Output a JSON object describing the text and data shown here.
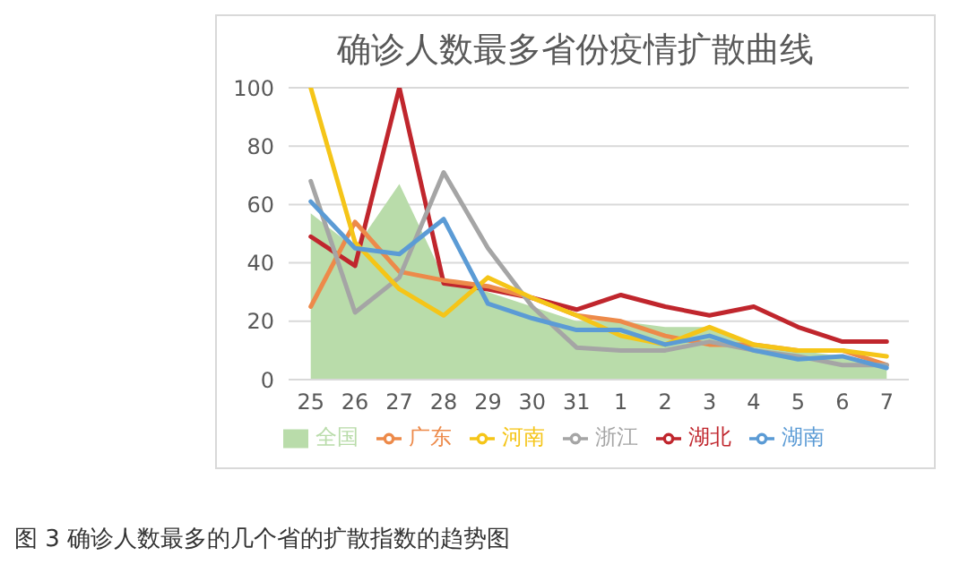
{
  "chart_data": {
    "type": "line",
    "title": "确诊人数最多省份疫情扩散曲线",
    "annotations": [
      "图 3 确诊人数最多的几个省的扩散指数的趋势图"
    ],
    "categories": [
      "25",
      "26",
      "27",
      "28",
      "29",
      "30",
      "31",
      "1",
      "2",
      "3",
      "4",
      "5",
      "6",
      "7"
    ],
    "ylim": [
      0,
      100
    ],
    "yticks": [
      0,
      20,
      40,
      60,
      80,
      100
    ],
    "grid": "y",
    "legend": "bottom",
    "marker": "none",
    "line_style": "solid",
    "series": [
      {
        "name": "全国",
        "type": "area",
        "color": "#b9dcaa",
        "values": [
          57,
          45,
          67,
          35,
          30,
          25,
          20,
          20,
          18,
          18,
          12,
          10,
          8,
          5
        ]
      },
      {
        "name": "湖北",
        "color": "#c0262d",
        "values": [
          49,
          39,
          100,
          33,
          31,
          28,
          24,
          29,
          25,
          22,
          25,
          18,
          13,
          13
        ]
      },
      {
        "name": "广东",
        "color": "#ed8a4a",
        "values": [
          25,
          54,
          37,
          34,
          32,
          28,
          22,
          20,
          15,
          12,
          12,
          10,
          10,
          5
        ]
      },
      {
        "name": "浙江",
        "color": "#a5a5a5",
        "values": [
          68,
          23,
          35,
          71,
          45,
          25,
          11,
          10,
          10,
          13,
          10,
          8,
          5,
          5
        ]
      },
      {
        "name": "河南",
        "color": "#f5c518",
        "values": [
          100,
          47,
          31,
          22,
          35,
          28,
          22,
          15,
          12,
          18,
          12,
          10,
          10,
          8
        ]
      },
      {
        "name": "湖南",
        "color": "#5b9bd5",
        "values": [
          61,
          45,
          43,
          55,
          26,
          21,
          17,
          17,
          12,
          15,
          10,
          7,
          8,
          4
        ]
      }
    ]
  }
}
